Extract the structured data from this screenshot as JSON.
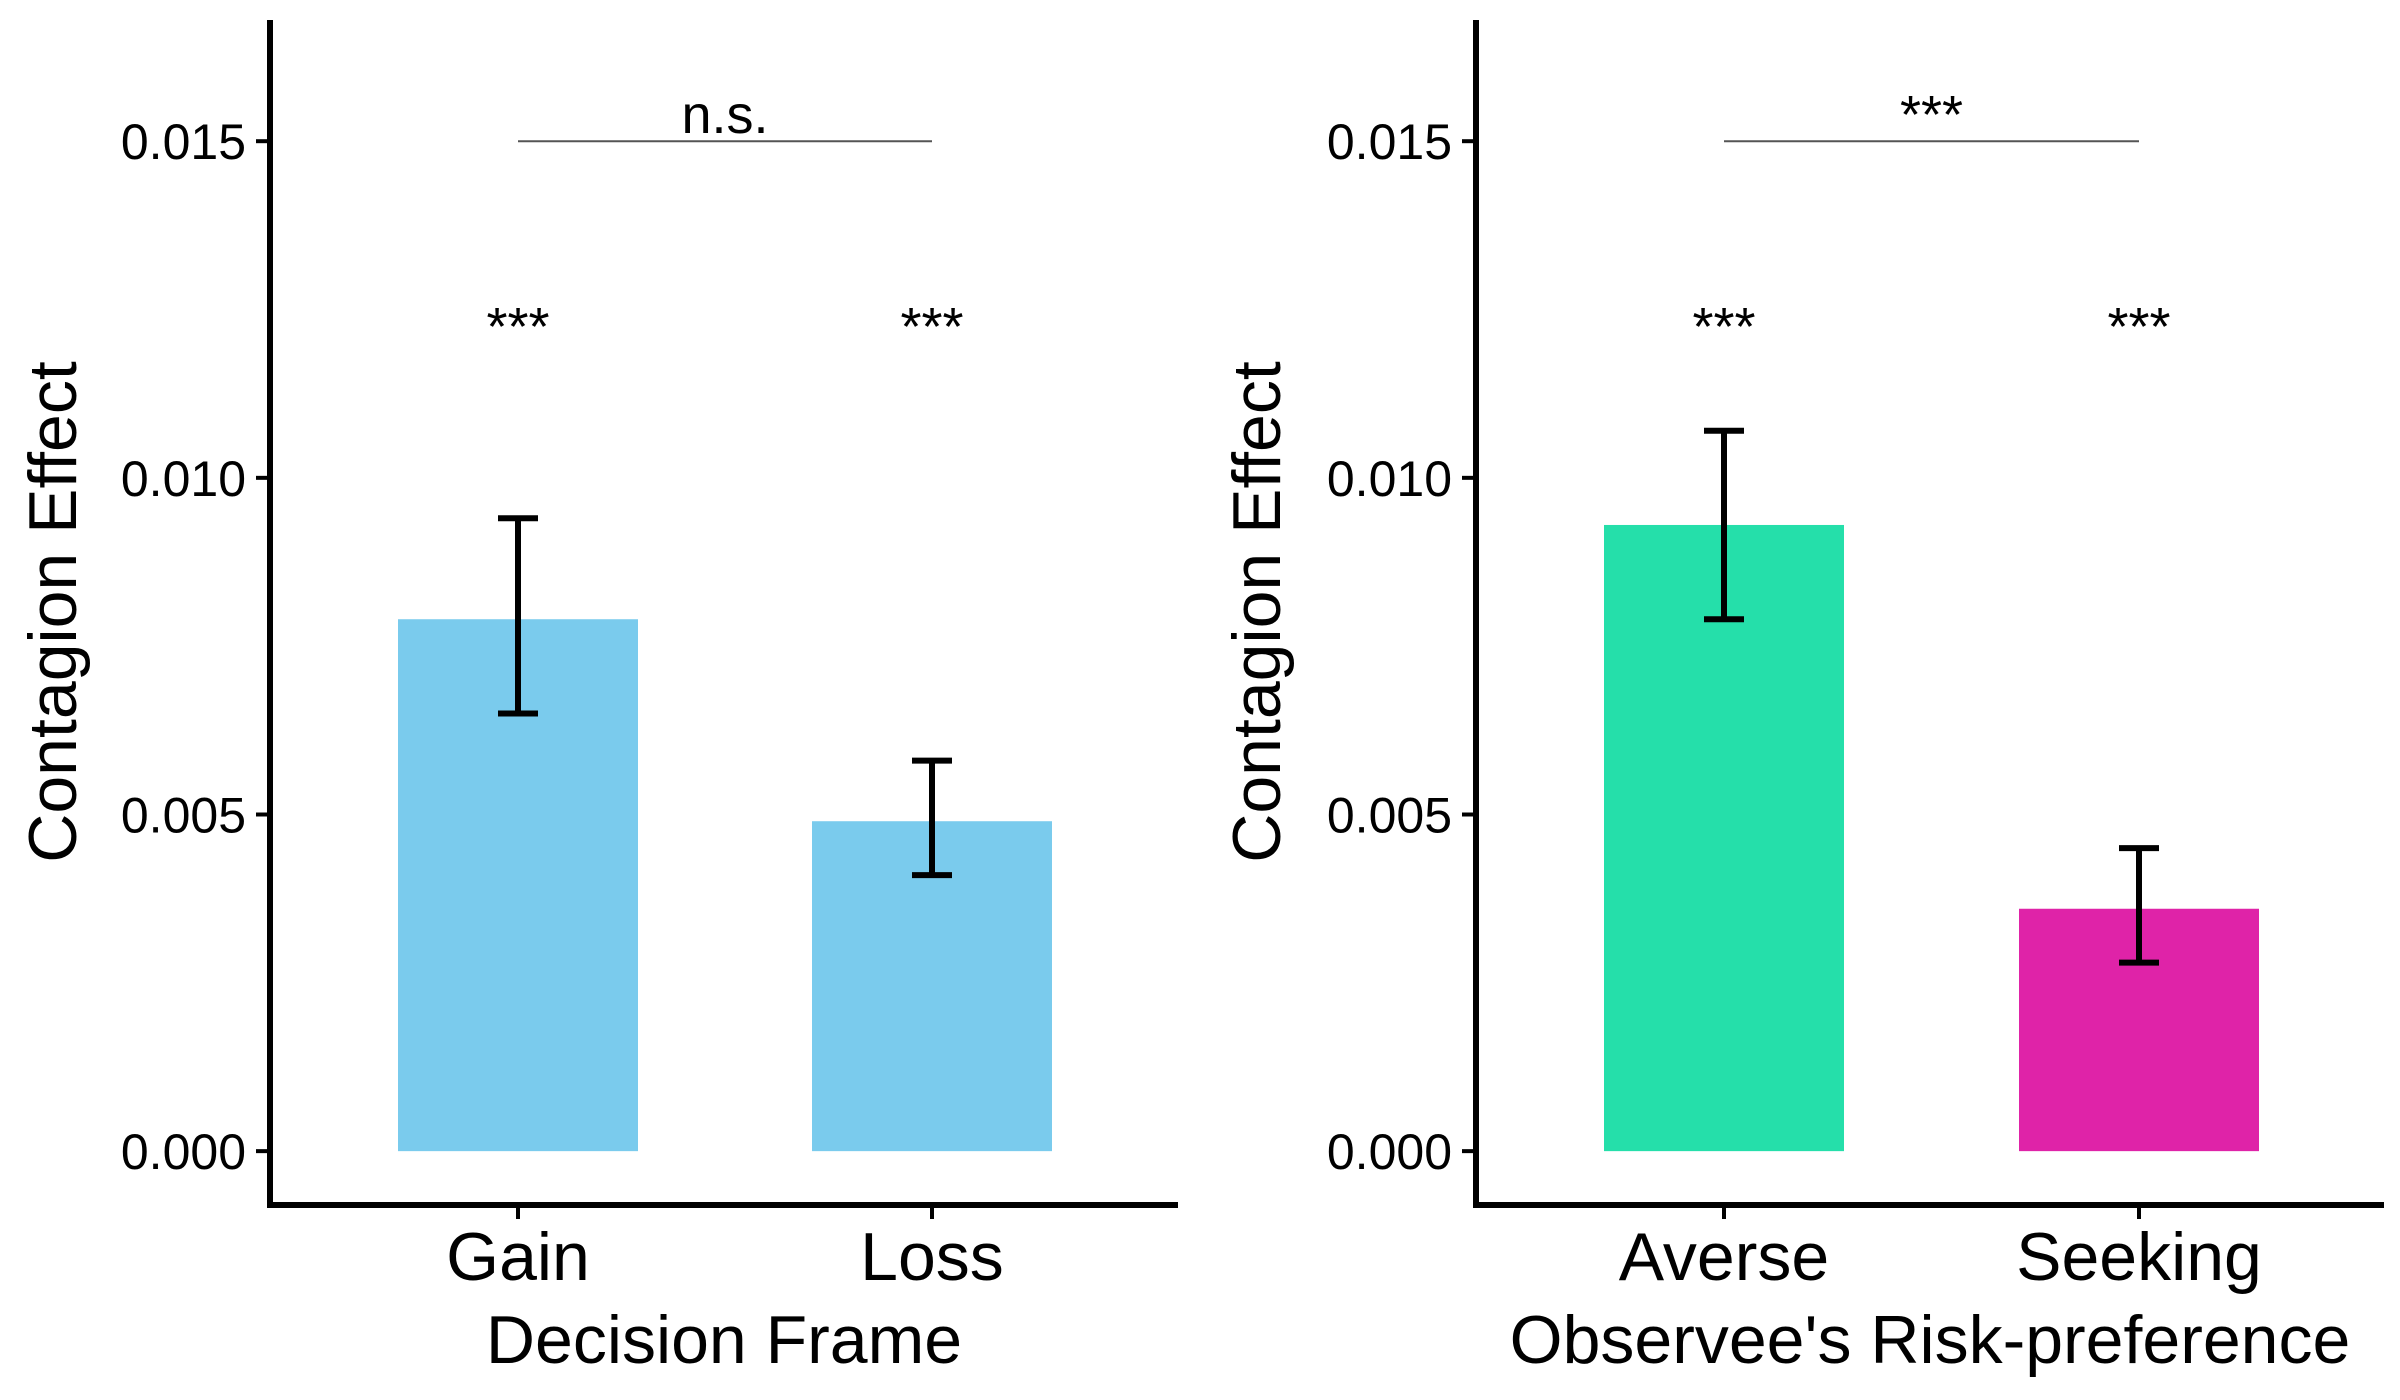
{
  "chart_data": [
    {
      "type": "bar",
      "categories": [
        "Gain",
        "Loss"
      ],
      "values": [
        0.0079,
        0.0049
      ],
      "error_low": [
        0.0065,
        0.0041
      ],
      "error_high": [
        0.0094,
        0.0058
      ],
      "bar_colors": [
        "#7acbed",
        "#7acbed"
      ],
      "xlabel": "Decision Frame",
      "ylabel": "Contagion Effect",
      "ylim": [
        -0.0008,
        0.0168
      ],
      "yticks": [
        0.0,
        0.005,
        0.01,
        0.015
      ],
      "ytick_labels": [
        "0.000",
        "0.005",
        "0.010",
        "0.015"
      ],
      "bar_significance": [
        "***",
        "***"
      ],
      "comparison": {
        "between": [
          "Gain",
          "Loss"
        ],
        "label": "n.s.",
        "y": 0.015
      },
      "grid": false,
      "legend": "none"
    },
    {
      "type": "bar",
      "categories": [
        "Averse",
        "Seeking"
      ],
      "values": [
        0.0093,
        0.0036
      ],
      "error_low": [
        0.0079,
        0.0028
      ],
      "error_high": [
        0.0107,
        0.0045
      ],
      "bar_colors": [
        "#25dfaa",
        "#df23a8"
      ],
      "xlabel": "Observee's Risk-preference",
      "ylabel": "Contagion Effect",
      "ylim": [
        -0.0008,
        0.0168
      ],
      "yticks": [
        0.0,
        0.005,
        0.01,
        0.015
      ],
      "ytick_labels": [
        "0.000",
        "0.005",
        "0.010",
        "0.015"
      ],
      "bar_significance": [
        "***",
        "***"
      ],
      "comparison": {
        "between": [
          "Averse",
          "Seeking"
        ],
        "label": "***",
        "y": 0.015
      },
      "grid": false,
      "legend": "none"
    }
  ]
}
